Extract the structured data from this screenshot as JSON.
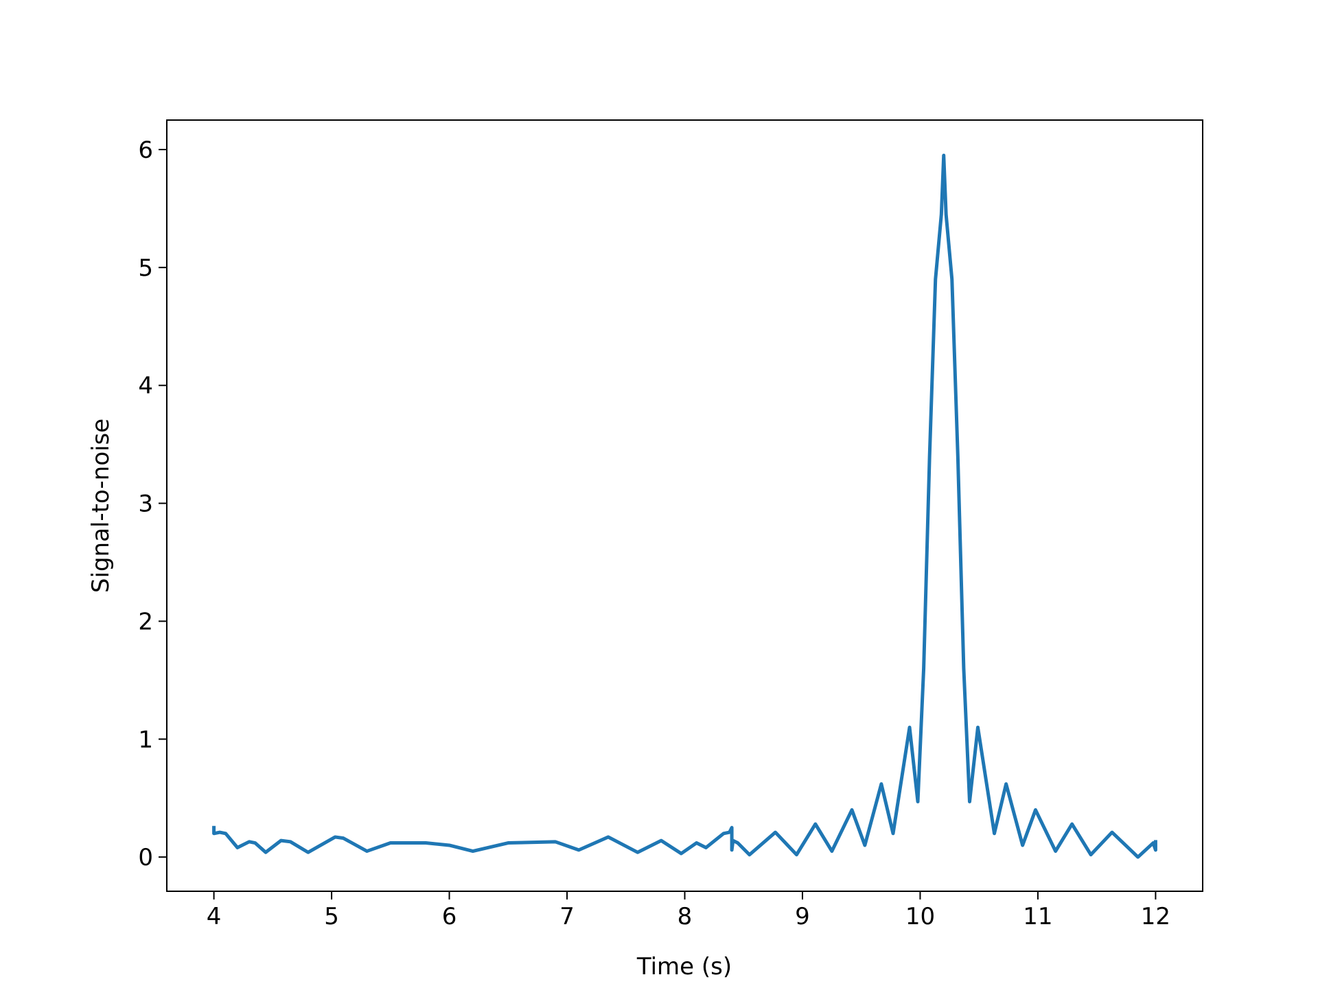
{
  "chart_data": {
    "type": "line",
    "xlabel": "Time (s)",
    "ylabel": "Signal-to-noise",
    "x": [
      4.0,
      4.0,
      4.05,
      4.1,
      4.2,
      4.3,
      4.35,
      4.44,
      4.57,
      4.65,
      4.8,
      5.03,
      5.1,
      5.3,
      5.5,
      5.8,
      6.0,
      6.2,
      6.5,
      6.9,
      7.1,
      7.35,
      7.6,
      7.8,
      7.97,
      8.1,
      8.18,
      8.33,
      8.38,
      8.4,
      8.4,
      8.41,
      8.45,
      8.55,
      8.77,
      8.95,
      9.11,
      9.25,
      9.42,
      9.53,
      9.67,
      9.77,
      9.91,
      9.98,
      10.03,
      10.08,
      10.13,
      10.18,
      10.2,
      10.22,
      10.27,
      10.32,
      10.37,
      10.42,
      10.49,
      10.63,
      10.73,
      10.87,
      10.98,
      11.15,
      11.29,
      11.45,
      11.63,
      11.85,
      11.98,
      12.0,
      12.0
    ],
    "series": [
      {
        "color": "#1f77b4",
        "values": [
          0.25,
          0.2,
          0.21,
          0.2,
          0.08,
          0.13,
          0.12,
          0.04,
          0.14,
          0.13,
          0.04,
          0.17,
          0.16,
          0.05,
          0.12,
          0.12,
          0.1,
          0.05,
          0.12,
          0.13,
          0.06,
          0.17,
          0.04,
          0.14,
          0.03,
          0.12,
          0.08,
          0.2,
          0.21,
          0.25,
          0.06,
          0.14,
          0.12,
          0.02,
          0.21,
          0.02,
          0.28,
          0.05,
          0.4,
          0.1,
          0.62,
          0.2,
          1.1,
          0.47,
          1.6,
          3.4,
          4.9,
          5.45,
          5.95,
          5.45,
          4.9,
          3.4,
          1.6,
          0.47,
          1.1,
          0.2,
          0.62,
          0.1,
          0.4,
          0.05,
          0.28,
          0.02,
          0.21,
          0.0,
          0.12,
          0.06,
          0.13
        ]
      }
    ],
    "xlim": [
      3.6,
      12.4
    ],
    "ylim": [
      -0.29,
      6.25
    ],
    "xticks": [
      4,
      5,
      6,
      7,
      8,
      9,
      10,
      11,
      12
    ],
    "yticks": [
      0,
      1,
      2,
      3,
      4,
      5,
      6
    ]
  }
}
